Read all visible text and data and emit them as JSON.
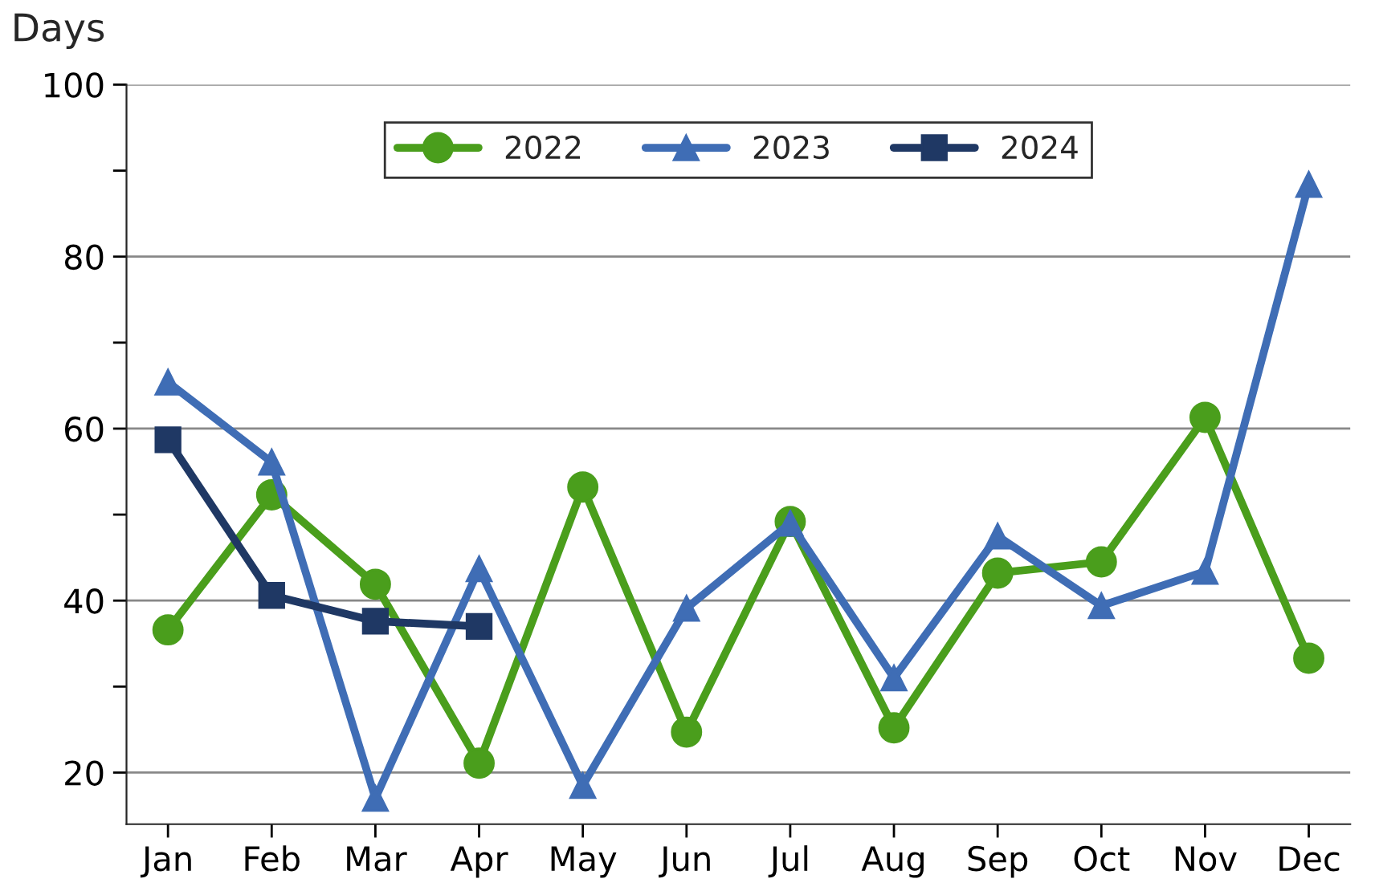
{
  "chart_data": {
    "type": "line",
    "ylabel": "Days",
    "categories": [
      "Jan",
      "Feb",
      "Mar",
      "Apr",
      "May",
      "Jun",
      "Jul",
      "Aug",
      "Sep",
      "Oct",
      "Nov",
      "Dec"
    ],
    "series": [
      {
        "name": "2022",
        "color": "#4a9e1c",
        "marker": "circle",
        "values": [
          36.6,
          52.3,
          41.9,
          21.1,
          53.2,
          24.7,
          49.2,
          25.2,
          43.2,
          44.5,
          61.3,
          33.3
        ]
      },
      {
        "name": "2023",
        "color": "#3f6db5",
        "marker": "triangle",
        "values": [
          65.4,
          56.1,
          17.0,
          43.7,
          18.5,
          39.1,
          49.0,
          31.0,
          47.5,
          39.4,
          43.4,
          88.4
        ]
      },
      {
        "name": "2024",
        "color": "#1f3864",
        "marker": "square",
        "values": [
          58.7,
          40.6,
          37.6,
          37.0,
          null,
          null,
          null,
          null,
          null,
          null,
          null,
          null
        ]
      }
    ],
    "ylim": [
      14,
      100
    ],
    "yticks": [
      20,
      {
        "value": 30,
        "label": null
      },
      40,
      {
        "value": 50,
        "label": null
      },
      60,
      {
        "value": 70,
        "label": null
      },
      80,
      {
        "value": 90,
        "label": null
      },
      100
    ],
    "grid": "y",
    "legend": "top",
    "line_style": "solid"
  }
}
